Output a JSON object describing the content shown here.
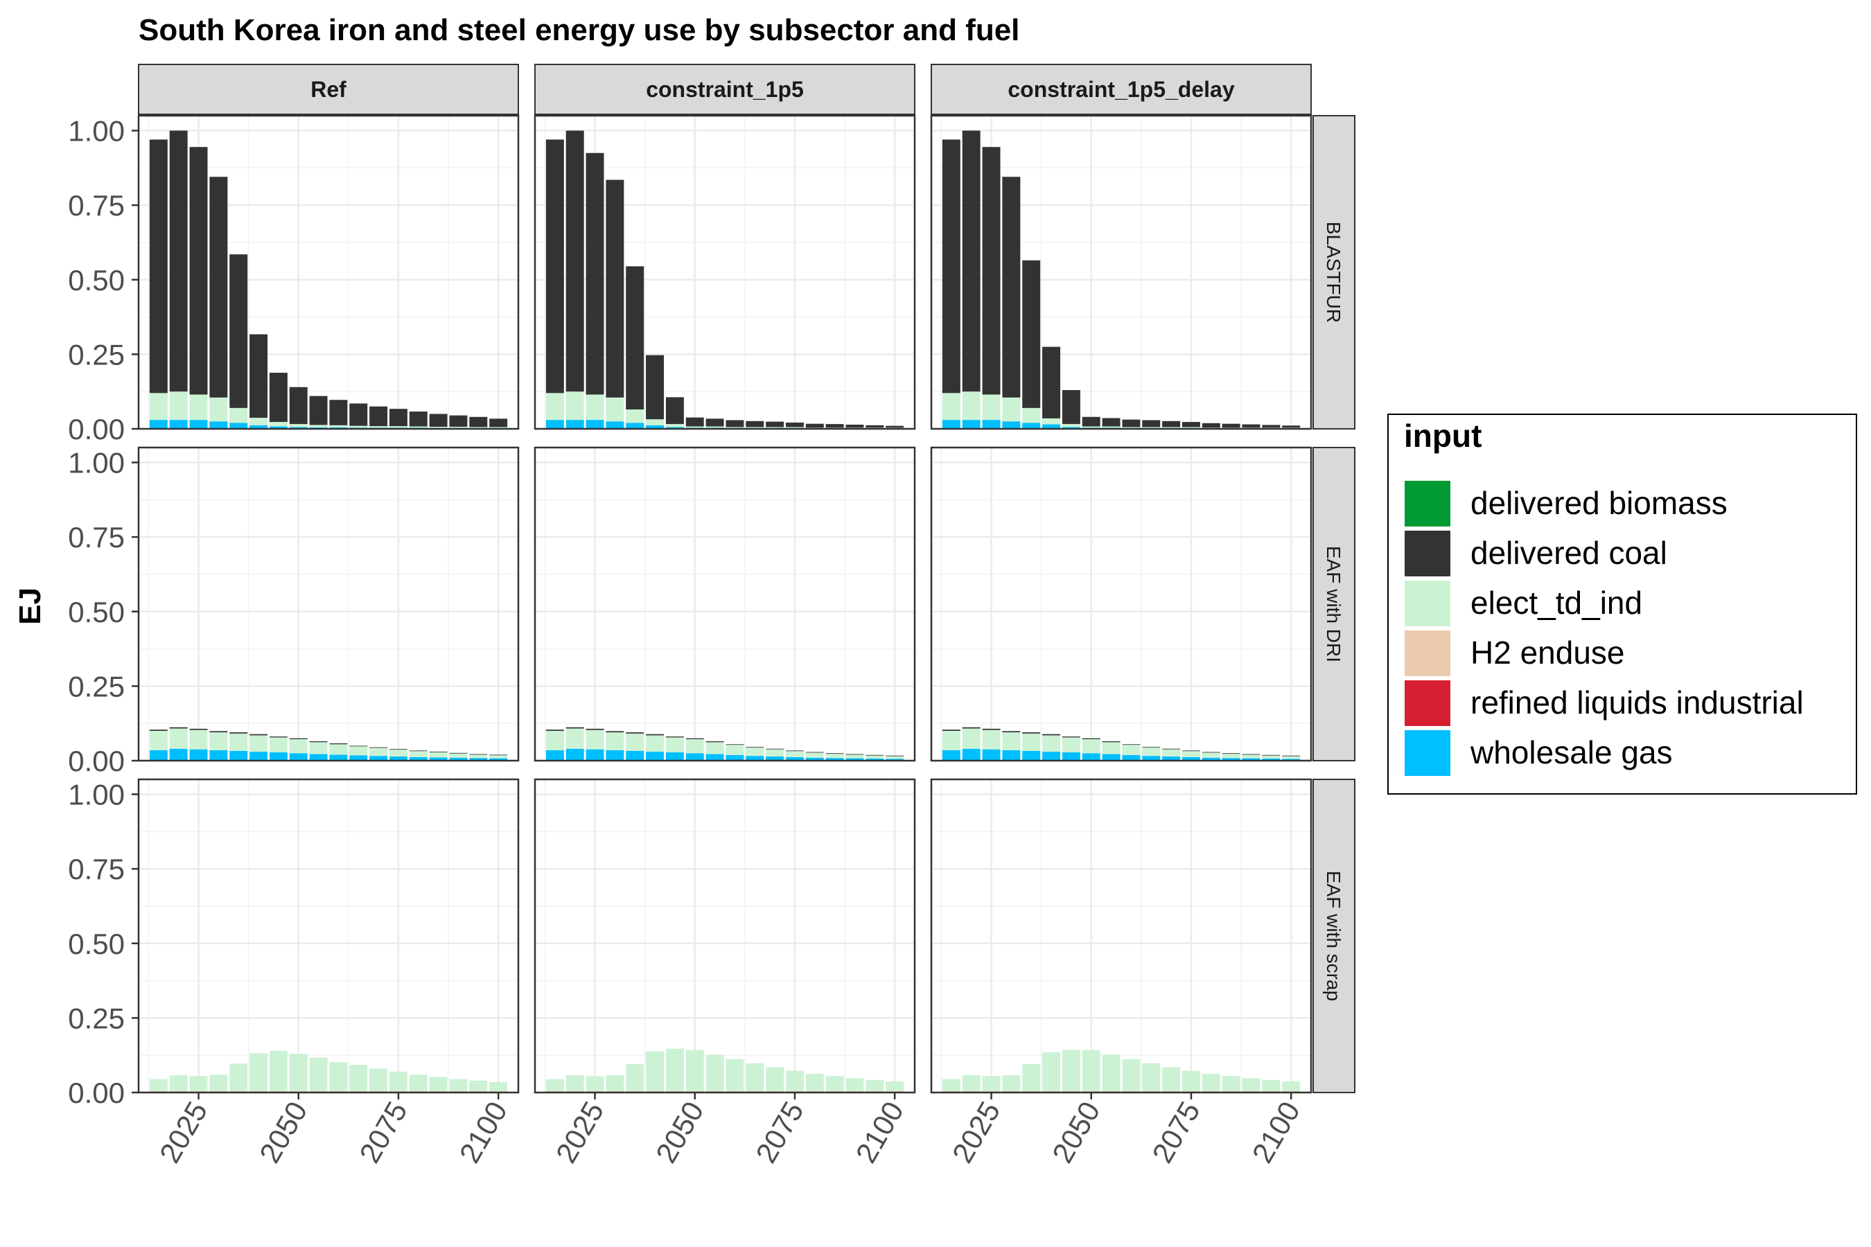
{
  "chart_data": {
    "type": "bar",
    "stacked": true,
    "title": "South Korea iron and steel energy use by subsector and fuel",
    "ylabel": "EJ",
    "xlabel": "",
    "ylim": [
      0,
      1.05
    ],
    "y_ticks": [
      0,
      0.25,
      0.5,
      0.75,
      1.0
    ],
    "y_tick_labels": [
      "0.00",
      "0.25",
      "0.50",
      "0.75",
      "1.00"
    ],
    "x_ticks": [
      2025,
      2050,
      2075,
      2100
    ],
    "x_tick_labels": [
      "2025",
      "2050",
      "2075",
      "2100"
    ],
    "xlim": [
      2010,
      2105
    ],
    "years": [
      2015,
      2020,
      2025,
      2030,
      2035,
      2040,
      2045,
      2050,
      2055,
      2060,
      2065,
      2070,
      2075,
      2080,
      2085,
      2090,
      2095,
      2100
    ],
    "facet_columns": [
      "Ref",
      "constraint_1p5",
      "constraint_1p5_delay"
    ],
    "facet_rows": [
      "BLASTFUR",
      "EAF with DRI",
      "EAF with scrap"
    ],
    "legend": {
      "title": "input",
      "position": "right",
      "entries": [
        {
          "name": "delivered biomass",
          "color": "#009933"
        },
        {
          "name": "delivered coal",
          "color": "#333333"
        },
        {
          "name": "elect_td_ind",
          "color": "#ccf2d4"
        },
        {
          "name": "H2 enduse",
          "color": "#ebcbad"
        },
        {
          "name": "refined liquids industrial",
          "color": "#d62031"
        },
        {
          "name": "wholesale gas",
          "color": "#00bfff"
        }
      ]
    },
    "panels": [
      {
        "col": "Ref",
        "row": "BLASTFUR",
        "series": [
          {
            "name": "wholesale gas",
            "values": [
              0.03,
              0.03,
              0.03,
              0.025,
              0.02,
              0.012,
              0.008,
              0.006,
              0.005,
              0.005,
              0.004,
              0.004,
              0.004,
              0.004,
              0.003,
              0.003,
              0.003,
              0.003
            ]
          },
          {
            "name": "elect_td_ind",
            "values": [
              0.09,
              0.095,
              0.085,
              0.08,
              0.05,
              0.025,
              0.015,
              0.01,
              0.008,
              0.007,
              0.006,
              0.005,
              0.005,
              0.004,
              0.004,
              0.004,
              0.003,
              0.003
            ]
          },
          {
            "name": "delivered coal",
            "values": [
              0.85,
              0.875,
              0.83,
              0.74,
              0.515,
              0.28,
              0.165,
              0.124,
              0.097,
              0.085,
              0.075,
              0.066,
              0.058,
              0.05,
              0.043,
              0.038,
              0.034,
              0.028
            ]
          }
        ]
      },
      {
        "col": "constraint_1p5",
        "row": "BLASTFUR",
        "series": [
          {
            "name": "wholesale gas",
            "values": [
              0.03,
              0.03,
              0.03,
              0.025,
              0.02,
              0.012,
              0.006,
              0.004,
              0.004,
              0.003,
              0.003,
              0.003,
              0.003,
              0.002,
              0.002,
              0.002,
              0.002,
              0.002
            ]
          },
          {
            "name": "elect_td_ind",
            "values": [
              0.09,
              0.095,
              0.085,
              0.08,
              0.045,
              0.02,
              0.01,
              0.004,
              0.004,
              0.003,
              0.003,
              0.003,
              0.003,
              0.002,
              0.002,
              0.002,
              0.002,
              0.002
            ]
          },
          {
            "name": "delivered coal",
            "values": [
              0.85,
              0.875,
              0.81,
              0.73,
              0.48,
              0.215,
              0.09,
              0.03,
              0.026,
              0.023,
              0.02,
              0.018,
              0.015,
              0.013,
              0.012,
              0.01,
              0.008,
              0.006
            ]
          }
        ]
      },
      {
        "col": "constraint_1p5_delay",
        "row": "BLASTFUR",
        "series": [
          {
            "name": "wholesale gas",
            "values": [
              0.03,
              0.03,
              0.03,
              0.025,
              0.02,
              0.015,
              0.006,
              0.004,
              0.004,
              0.003,
              0.003,
              0.003,
              0.003,
              0.002,
              0.002,
              0.002,
              0.002,
              0.002
            ]
          },
          {
            "name": "elect_td_ind",
            "values": [
              0.09,
              0.095,
              0.085,
              0.08,
              0.05,
              0.02,
              0.01,
              0.004,
              0.004,
              0.003,
              0.003,
              0.003,
              0.003,
              0.002,
              0.002,
              0.002,
              0.002,
              0.002
            ]
          },
          {
            "name": "delivered coal",
            "values": [
              0.85,
              0.875,
              0.83,
              0.74,
              0.495,
              0.24,
              0.114,
              0.032,
              0.028,
              0.025,
              0.023,
              0.02,
              0.017,
              0.015,
              0.013,
              0.011,
              0.009,
              0.007
            ]
          }
        ]
      },
      {
        "col": "Ref",
        "row": "EAF with DRI",
        "series": [
          {
            "name": "wholesale gas",
            "values": [
              0.035,
              0.04,
              0.038,
              0.035,
              0.033,
              0.03,
              0.028,
              0.025,
              0.022,
              0.02,
              0.018,
              0.016,
              0.014,
              0.012,
              0.011,
              0.01,
              0.009,
              0.008
            ]
          },
          {
            "name": "elect_td_ind",
            "values": [
              0.065,
              0.068,
              0.065,
              0.06,
              0.058,
              0.055,
              0.05,
              0.047,
              0.04,
              0.035,
              0.03,
              0.027,
              0.023,
              0.02,
              0.017,
              0.014,
              0.011,
              0.01
            ]
          },
          {
            "name": "delivered coal",
            "values": [
              0.004,
              0.004,
              0.004,
              0.004,
              0.004,
              0.004,
              0.003,
              0.003,
              0.003,
              0.003,
              0.002,
              0.002,
              0.002,
              0.002,
              0.002,
              0.002,
              0.002,
              0.002
            ]
          }
        ]
      },
      {
        "col": "constraint_1p5",
        "row": "EAF with DRI",
        "series": [
          {
            "name": "wholesale gas",
            "values": [
              0.035,
              0.04,
              0.038,
              0.035,
              0.033,
              0.03,
              0.028,
              0.025,
              0.022,
              0.019,
              0.016,
              0.014,
              0.012,
              0.01,
              0.009,
              0.008,
              0.007,
              0.006
            ]
          },
          {
            "name": "elect_td_ind",
            "values": [
              0.065,
              0.068,
              0.065,
              0.06,
              0.058,
              0.055,
              0.05,
              0.047,
              0.04,
              0.034,
              0.028,
              0.024,
              0.02,
              0.017,
              0.014,
              0.012,
              0.01,
              0.009
            ]
          },
          {
            "name": "delivered coal",
            "values": [
              0.004,
              0.004,
              0.004,
              0.004,
              0.004,
              0.004,
              0.003,
              0.003,
              0.003,
              0.002,
              0.002,
              0.002,
              0.002,
              0.002,
              0.002,
              0.002,
              0.002,
              0.002
            ]
          }
        ]
      },
      {
        "col": "constraint_1p5_delay",
        "row": "EAF with DRI",
        "series": [
          {
            "name": "wholesale gas",
            "values": [
              0.035,
              0.04,
              0.038,
              0.035,
              0.033,
              0.03,
              0.028,
              0.025,
              0.022,
              0.019,
              0.016,
              0.014,
              0.012,
              0.01,
              0.009,
              0.008,
              0.007,
              0.006
            ]
          },
          {
            "name": "elect_td_ind",
            "values": [
              0.065,
              0.068,
              0.065,
              0.06,
              0.058,
              0.055,
              0.05,
              0.047,
              0.04,
              0.034,
              0.028,
              0.024,
              0.02,
              0.017,
              0.014,
              0.012,
              0.01,
              0.009
            ]
          },
          {
            "name": "delivered coal",
            "values": [
              0.004,
              0.004,
              0.004,
              0.004,
              0.004,
              0.004,
              0.003,
              0.003,
              0.003,
              0.002,
              0.002,
              0.002,
              0.002,
              0.002,
              0.002,
              0.002,
              0.002,
              0.002
            ]
          }
        ]
      },
      {
        "col": "Ref",
        "row": "EAF with scrap",
        "series": [
          {
            "name": "refined liquids industrial",
            "values": [
              0.002,
              0.002,
              0.002,
              0.002,
              0.002,
              0.002,
              0.002,
              0.002,
              0.002,
              0.002,
              0.002,
              0.002,
              0.002,
              0.002,
              0.002,
              0.002,
              0.002,
              0.002
            ]
          },
          {
            "name": "H2 enduse",
            "values": [
              0.003,
              0.003,
              0.003,
              0.003,
              0.003,
              0.003,
              0.003,
              0.003,
              0.003,
              0.003,
              0.003,
              0.003,
              0.003,
              0.003,
              0.003,
              0.003,
              0.003,
              0.003
            ]
          },
          {
            "name": "elect_td_ind",
            "values": [
              0.04,
              0.053,
              0.05,
              0.055,
              0.092,
              0.127,
              0.135,
              0.125,
              0.112,
              0.097,
              0.088,
              0.075,
              0.065,
              0.055,
              0.047,
              0.04,
              0.035,
              0.03
            ]
          }
        ]
      },
      {
        "col": "constraint_1p5",
        "row": "EAF with scrap",
        "series": [
          {
            "name": "refined liquids industrial",
            "values": [
              0.002,
              0.002,
              0.002,
              0.002,
              0.002,
              0.002,
              0.002,
              0.002,
              0.002,
              0.002,
              0.002,
              0.002,
              0.002,
              0.002,
              0.002,
              0.002,
              0.002,
              0.002
            ]
          },
          {
            "name": "H2 enduse",
            "values": [
              0.003,
              0.003,
              0.003,
              0.003,
              0.003,
              0.003,
              0.003,
              0.003,
              0.003,
              0.003,
              0.003,
              0.003,
              0.003,
              0.003,
              0.003,
              0.003,
              0.003,
              0.003
            ]
          },
          {
            "name": "elect_td_ind",
            "values": [
              0.04,
              0.053,
              0.05,
              0.053,
              0.09,
              0.133,
              0.142,
              0.138,
              0.122,
              0.107,
              0.093,
              0.08,
              0.068,
              0.058,
              0.05,
              0.043,
              0.037,
              0.032
            ]
          }
        ]
      },
      {
        "col": "constraint_1p5_delay",
        "row": "EAF with scrap",
        "series": [
          {
            "name": "refined liquids industrial",
            "values": [
              0.002,
              0.002,
              0.002,
              0.002,
              0.002,
              0.002,
              0.002,
              0.002,
              0.002,
              0.002,
              0.002,
              0.002,
              0.002,
              0.002,
              0.002,
              0.002,
              0.002,
              0.002
            ]
          },
          {
            "name": "H2 enduse",
            "values": [
              0.003,
              0.003,
              0.003,
              0.003,
              0.003,
              0.003,
              0.003,
              0.003,
              0.003,
              0.003,
              0.003,
              0.003,
              0.003,
              0.003,
              0.003,
              0.003,
              0.003,
              0.003
            ]
          },
          {
            "name": "elect_td_ind",
            "values": [
              0.04,
              0.053,
              0.05,
              0.053,
              0.09,
              0.13,
              0.138,
              0.138,
              0.122,
              0.107,
              0.093,
              0.08,
              0.068,
              0.058,
              0.05,
              0.043,
              0.037,
              0.032
            ]
          }
        ]
      }
    ]
  }
}
